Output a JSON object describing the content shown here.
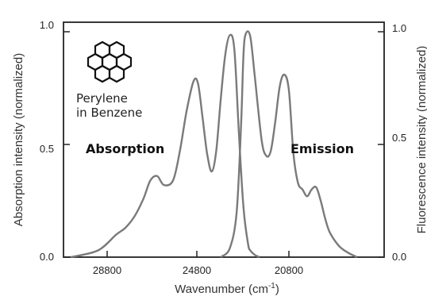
{
  "chart_data": {
    "type": "line",
    "xlabel": "Wavenumber (cm",
    "xlabel_sup": "-1",
    "xlabel_close": ")",
    "ylabel_left": "Absorption intensity (normalized)",
    "ylabel_right": "Fluorescence intensity (normalized)",
    "x_ticks": [
      28800,
      24800,
      20800
    ],
    "y_ticks_left": [
      "0.0",
      "0.5",
      "1.0"
    ],
    "y_ticks_right": [
      "0.0",
      "0.5",
      "1.0"
    ],
    "xlim": [
      31000,
      17200
    ],
    "ylim": [
      0,
      1
    ],
    "x_reversed": true,
    "grid": false,
    "annotations": {
      "compound_line1": "Perylene",
      "compound_line2": "in Benzene",
      "absorption": "Absorption",
      "emission": "Emission"
    },
    "series": [
      {
        "name": "Absorption",
        "x": [
          30400,
          29200,
          28400,
          28000,
          27600,
          27200,
          26900,
          26600,
          26300,
          25900,
          25600,
          25300,
          25000,
          24800,
          24600,
          24400,
          24200,
          24000,
          23800,
          23600,
          23400,
          23200,
          23000,
          22800,
          22600,
          22500,
          22300,
          22100
        ],
        "y": [
          0.0,
          0.03,
          0.1,
          0.13,
          0.18,
          0.26,
          0.34,
          0.36,
          0.32,
          0.34,
          0.47,
          0.65,
          0.78,
          0.77,
          0.62,
          0.46,
          0.38,
          0.47,
          0.7,
          0.9,
          0.985,
          0.92,
          0.55,
          0.22,
          0.06,
          0.03,
          0.01,
          0.0
        ]
      },
      {
        "name": "Emission",
        "x": [
          23800,
          23400,
          23100,
          22900,
          22800,
          22700,
          22500,
          22300,
          22000,
          21800,
          21600,
          21400,
          21200,
          21000,
          20800,
          20600,
          20400,
          20200,
          20000,
          19800,
          19600,
          19400,
          19200,
          19000,
          18600,
          18200,
          17800
        ],
        "y": [
          0.0,
          0.04,
          0.2,
          0.6,
          0.9,
          0.99,
          0.98,
          0.8,
          0.52,
          0.45,
          0.47,
          0.6,
          0.76,
          0.81,
          0.74,
          0.46,
          0.33,
          0.3,
          0.27,
          0.3,
          0.31,
          0.25,
          0.17,
          0.11,
          0.05,
          0.02,
          0.0
        ]
      }
    ]
  }
}
